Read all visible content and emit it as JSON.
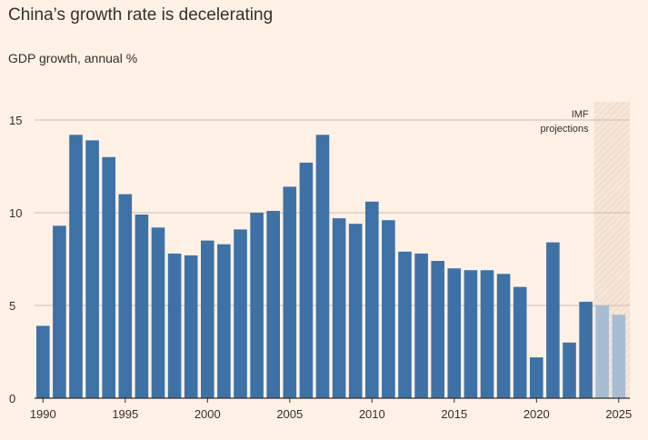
{
  "chart_data": {
    "type": "bar",
    "title": "China’s growth rate is decelerating",
    "subtitle": "GDP growth, annual %",
    "xlabel": "",
    "ylabel": "",
    "ylim": [
      0,
      15
    ],
    "yticks": [
      0,
      5,
      10,
      15
    ],
    "xticks": [
      1990,
      1995,
      2000,
      2005,
      2010,
      2015,
      2020,
      2025
    ],
    "grid": true,
    "colors": {
      "actual": "#3e72a6",
      "projection": "#a7bdd3",
      "background": "#fff1e5",
      "grid": "#c9bcb0"
    },
    "projection_label": [
      "IMF",
      "projections"
    ],
    "projection_start": 2024,
    "years": [
      1990,
      1991,
      1992,
      1993,
      1994,
      1995,
      1996,
      1997,
      1998,
      1999,
      2000,
      2001,
      2002,
      2003,
      2004,
      2005,
      2006,
      2007,
      2008,
      2009,
      2010,
      2011,
      2012,
      2013,
      2014,
      2015,
      2016,
      2017,
      2018,
      2019,
      2020,
      2021,
      2022,
      2023,
      2024,
      2025
    ],
    "values": [
      3.9,
      9.3,
      14.2,
      13.9,
      13.0,
      11.0,
      9.9,
      9.2,
      7.8,
      7.7,
      8.5,
      8.3,
      9.1,
      10.0,
      10.1,
      11.4,
      12.7,
      14.2,
      9.7,
      9.4,
      10.6,
      9.6,
      7.9,
      7.8,
      7.4,
      7.0,
      6.9,
      6.9,
      6.7,
      6.0,
      2.2,
      8.4,
      3.0,
      5.2,
      5.0,
      4.5
    ]
  }
}
